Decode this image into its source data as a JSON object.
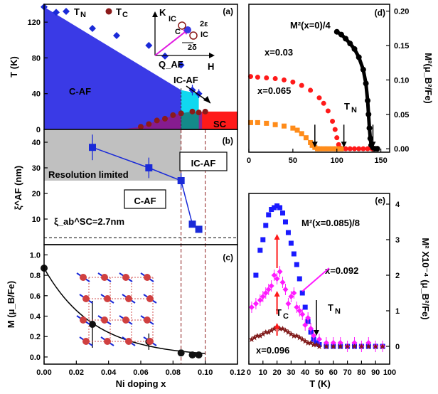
{
  "chart_data": [
    {
      "id": "a",
      "type": "area",
      "panel_label": "(a)",
      "ylabel": "T (K)",
      "xlim": [
        0,
        0.12
      ],
      "ylim": [
        0,
        140
      ],
      "yticks": [
        "0",
        "40",
        "80",
        "120"
      ],
      "legend": [
        "T_N",
        "T_C"
      ],
      "series": [
        {
          "name": "T_N",
          "x": [
            0.0,
            0.0075,
            0.03,
            0.045,
            0.065,
            0.075,
            0.085,
            0.092,
            0.096
          ],
          "y": [
            137,
            131,
            113,
            105,
            94,
            82,
            72,
            44,
            40
          ]
        },
        {
          "name": "T_C",
          "x": [
            0.05,
            0.06,
            0.065,
            0.07,
            0.075,
            0.08,
            0.085,
            0.092,
            0.096,
            0.1
          ],
          "y": [
            0.5,
            3,
            6,
            10,
            12,
            16,
            18,
            20,
            19,
            20
          ]
        }
      ],
      "regions": [
        "C-AF",
        "IC-AF",
        "SC"
      ],
      "inset": {
        "axes": [
          "K",
          "H"
        ],
        "labels": [
          "IC",
          "C",
          "IC",
          "2ε",
          "2δ",
          "Q_AF"
        ]
      }
    },
    {
      "id": "b",
      "type": "line",
      "panel_label": "(b)",
      "ylabel": "ξ^AF (nm)",
      "ylim": [
        0,
        45
      ],
      "yticks": [
        "10",
        "20",
        "30",
        "40"
      ],
      "x": [
        0.03,
        0.065,
        0.085,
        0.092,
        0.096
      ],
      "y": [
        38,
        30,
        25,
        8,
        6
      ],
      "yerr": [
        5,
        4,
        3,
        1,
        1
      ],
      "labels": [
        "Resolution limited",
        "IC-AF",
        "C-AF"
      ],
      "annotation": "ξ_ab^SC=2.7nm",
      "hline": 2.7
    },
    {
      "id": "c",
      "type": "scatter",
      "panel_label": "(c)",
      "xlabel": "Ni doping x",
      "ylabel": "M (μ_B/Fe)",
      "xlim": [
        0,
        0.12
      ],
      "ylim": [
        0,
        1.1
      ],
      "xticks": [
        "0.00",
        "0.02",
        "0.04",
        "0.06",
        "0.08",
        "0.10",
        "0.12"
      ],
      "yticks": [
        "0.0",
        "0.2",
        "0.4",
        "0.6",
        "0.8",
        "1.0"
      ],
      "x": [
        0.0,
        0.03,
        0.065,
        0.085,
        0.092,
        0.096
      ],
      "y": [
        0.87,
        0.32,
        0.15,
        0.04,
        0.02,
        0.02
      ],
      "yerr": [
        0,
        0.23,
        0.08,
        0.02,
        0,
        0
      ]
    },
    {
      "id": "d",
      "type": "scatter",
      "panel_label": "(d)",
      "ylabel": "M²(μ_B²/Fe)",
      "xlim": [
        0,
        160
      ],
      "ylim": [
        -0.005,
        0.21
      ],
      "xticks": [
        "0",
        "50",
        "100",
        "150"
      ],
      "yticks": [
        "0.00",
        "0.05",
        "0.10",
        "0.15",
        "0.20"
      ],
      "series": [
        {
          "name": "M²(x=0)/4",
          "color": "#000000",
          "x": [
            100,
            105,
            110,
            115,
            120,
            125,
            130,
            133,
            135,
            136,
            137,
            138,
            139,
            140,
            141,
            143,
            146
          ],
          "y": [
            0.17,
            0.166,
            0.16,
            0.153,
            0.145,
            0.133,
            0.115,
            0.095,
            0.07,
            0.05,
            0.03,
            0.015,
            0.005,
            0.001,
            0.0,
            0.0,
            0.0
          ]
        },
        {
          "name": "x=0.03",
          "color": "#ff1a1a",
          "x": [
            2,
            10,
            20,
            30,
            40,
            50,
            60,
            70,
            80,
            85,
            90,
            95,
            98,
            100,
            102,
            104,
            106,
            110,
            115,
            120,
            125,
            130,
            135,
            140
          ],
          "y": [
            0.105,
            0.104,
            0.103,
            0.102,
            0.1,
            0.097,
            0.092,
            0.085,
            0.074,
            0.066,
            0.055,
            0.04,
            0.028,
            0.016,
            0.006,
            0.001,
            0.0,
            0.0,
            0.0,
            0.0,
            0.0,
            0.0,
            0.0,
            0.0
          ]
        },
        {
          "name": "x=0.065",
          "color": "#ff8c1a",
          "x": [
            2,
            10,
            20,
            30,
            40,
            50,
            55,
            60,
            65,
            70,
            72,
            75,
            78,
            80,
            85,
            90,
            95,
            100,
            105
          ],
          "y": [
            0.038,
            0.038,
            0.037,
            0.035,
            0.033,
            0.03,
            0.027,
            0.022,
            0.016,
            0.009,
            0.005,
            0.002,
            0.0,
            0.0,
            0.0,
            0.0,
            0.0,
            0.0,
            0.0
          ]
        }
      ],
      "annotation": "T_N"
    },
    {
      "id": "e",
      "type": "scatter",
      "panel_label": "(e)",
      "xlabel": "T (K)",
      "ylabel": "M² X10⁻⁴ (μ_B²/Fe)",
      "xlim": [
        0,
        100
      ],
      "ylim": [
        -0.5,
        4.3
      ],
      "xticks": [
        "0",
        "10",
        "20",
        "30",
        "40",
        "50",
        "60",
        "70",
        "80",
        "90",
        "100"
      ],
      "yticks": [
        "0",
        "1",
        "2",
        "3",
        "4"
      ],
      "series": [
        {
          "name": "M²(x=0.085)/8",
          "color": "#1a1aff",
          "x": [
            5,
            8,
            10,
            12,
            14,
            16,
            18,
            20,
            22,
            24,
            26,
            28,
            30,
            32,
            34,
            36,
            38,
            40,
            42,
            44,
            46,
            48,
            50,
            55,
            60,
            65,
            70,
            75,
            80,
            85,
            90,
            95
          ],
          "y": [
            2.0,
            2.7,
            3.0,
            3.4,
            3.7,
            3.85,
            3.9,
            3.95,
            3.9,
            3.75,
            3.5,
            3.2,
            2.9,
            2.6,
            2.3,
            1.9,
            1.5,
            1.1,
            0.7,
            0.4,
            0.2,
            0.1,
            0.05,
            0.0,
            0.0,
            0.0,
            0.0,
            0.0,
            0.0,
            0.0,
            0.0,
            0.0
          ]
        },
        {
          "name": "x=0.092",
          "color": "#ff1aff",
          "x": [
            2,
            5,
            8,
            10,
            12,
            14,
            16,
            18,
            20,
            22,
            24,
            26,
            28,
            30,
            32,
            34,
            36,
            38,
            40,
            42,
            44,
            46,
            50,
            55,
            60,
            65,
            70,
            75,
            80,
            85,
            90,
            95
          ],
          "y": [
            1.1,
            1.2,
            1.3,
            1.4,
            1.5,
            1.6,
            1.7,
            2.0,
            1.9,
            2.1,
            1.8,
            1.6,
            1.2,
            1.4,
            1.5,
            1.1,
            1.0,
            0.9,
            0.6,
            0.8,
            0.5,
            0.3,
            0.2,
            0.1,
            0.1,
            0.1,
            0.0,
            0.1,
            0.0,
            0.1,
            0.0,
            0.0
          ]
        },
        {
          "name": "x=0.096",
          "color": "#801a1a",
          "x": [
            2,
            4,
            6,
            8,
            10,
            12,
            14,
            16,
            18,
            20,
            22,
            24,
            26,
            28,
            30,
            32,
            34,
            36,
            38,
            40,
            42,
            44,
            46,
            48,
            50,
            55,
            60,
            65,
            70,
            75,
            80,
            85,
            90,
            95
          ],
          "y": [
            0.2,
            0.25,
            0.3,
            0.3,
            0.35,
            0.4,
            0.4,
            0.45,
            0.5,
            0.55,
            0.5,
            0.5,
            0.45,
            0.4,
            0.35,
            0.3,
            0.3,
            0.25,
            0.2,
            0.15,
            0.1,
            0.1,
            0.05,
            0.05,
            0.0,
            0.0,
            0.0,
            0.0,
            0.0,
            0.0,
            0.0,
            0.0,
            0.0,
            0.0
          ]
        }
      ],
      "annotations": [
        "T_C",
        "T_N"
      ]
    }
  ]
}
